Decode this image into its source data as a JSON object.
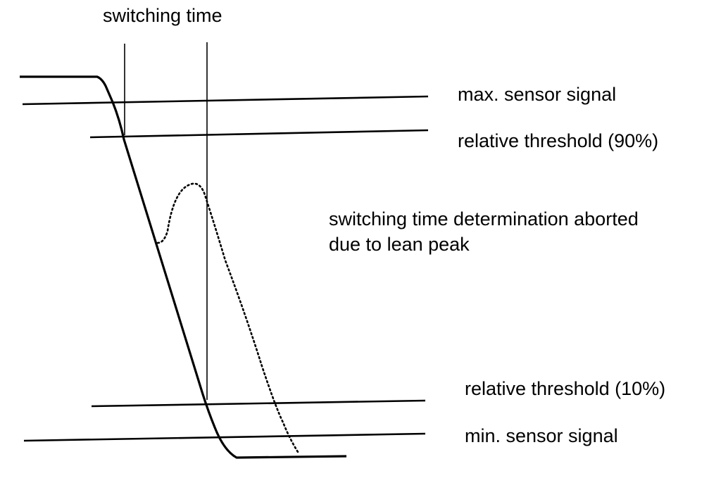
{
  "labels": {
    "switching_time": "switching time",
    "max_sensor_signal": "max. sensor signal",
    "relative_threshold_90": "relative threshold (90%)",
    "aborted_line1": "switching time determination aborted",
    "aborted_line2": "due to lean peak",
    "relative_threshold_10": "relative threshold (10%)",
    "min_sensor_signal": "min. sensor signal"
  },
  "colors": {
    "ink": "#000000",
    "background": "#ffffff"
  }
}
